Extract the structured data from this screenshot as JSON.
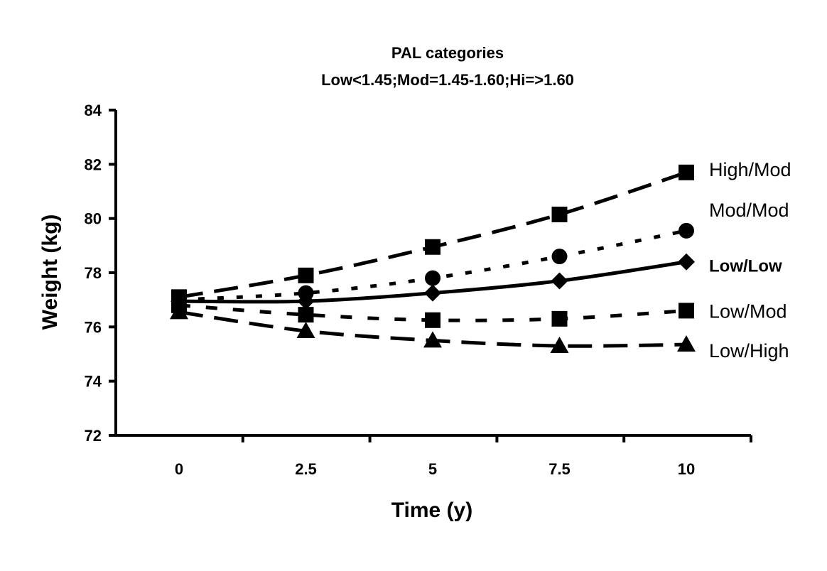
{
  "chart_data": {
    "type": "line",
    "title": "PAL categories",
    "subtitle": "Low<1.45;Mod=1.45-1.60;Hi=>1.60",
    "xlabel": "Time (y)",
    "ylabel": "Weight (kg)",
    "x": [
      0,
      2.5,
      5,
      7.5,
      10
    ],
    "x_tick_labels": [
      "0",
      "2.5",
      "5",
      "7.5",
      "10"
    ],
    "y_ticks": [
      72,
      74,
      76,
      78,
      80,
      82,
      84
    ],
    "ylim": [
      72,
      84
    ],
    "grid": false,
    "legend": "direct labels at right end of lines",
    "series": [
      {
        "name": "High/Mod",
        "values": [
          77.1,
          77.9,
          78.95,
          80.15,
          81.7
        ],
        "marker": "square",
        "line": "long-dash",
        "bold_label": false
      },
      {
        "name": "Mod/Mod",
        "values": [
          77.0,
          77.25,
          77.8,
          78.6,
          79.55
        ],
        "marker": "circle",
        "line": "dotted",
        "bold_label": false
      },
      {
        "name": "Low/Low",
        "values": [
          76.95,
          76.95,
          77.25,
          77.7,
          78.4
        ],
        "marker": "diamond",
        "line": "solid",
        "bold_label": true
      },
      {
        "name": "Low/Mod",
        "values": [
          76.8,
          76.45,
          76.25,
          76.3,
          76.6
        ],
        "marker": "square",
        "line": "short-dash",
        "bold_label": false
      },
      {
        "name": "Low/High",
        "values": [
          76.55,
          75.85,
          75.5,
          75.3,
          75.35
        ],
        "marker": "triangle",
        "line": "long-dash",
        "bold_label": false
      }
    ],
    "color": "#000000"
  }
}
